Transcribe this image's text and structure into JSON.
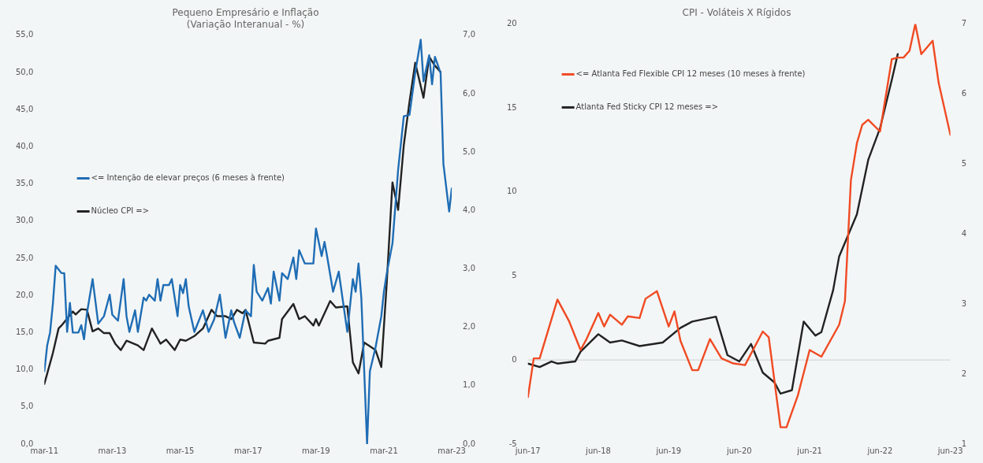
{
  "chart_data": [
    {
      "type": "line",
      "title": [
        "Pequeno Empresário e Inflação",
        "(Variação Interanual - %)"
      ],
      "legend": "left",
      "grid": false,
      "xlim": [
        "2011-03",
        "2023-03"
      ],
      "xticks": [
        {
          "value": "2011-03",
          "label": "mar-11"
        },
        {
          "value": "2013-03",
          "label": "mar-13"
        },
        {
          "value": "2015-03",
          "label": "mar-15"
        },
        {
          "value": "2017-03",
          "label": "mar-17"
        },
        {
          "value": "2019-03",
          "label": "mar-19"
        },
        {
          "value": "2021-03",
          "label": "mar-21"
        },
        {
          "value": "2023-03",
          "label": "mar-23"
        }
      ],
      "ylim": [
        0,
        55
      ],
      "yticks": [
        {
          "value": 0,
          "label": "0,0"
        },
        {
          "value": 5,
          "label": "5,0"
        },
        {
          "value": 10,
          "label": "10,0"
        },
        {
          "value": 15,
          "label": "15,0"
        },
        {
          "value": 20,
          "label": "20,0"
        },
        {
          "value": 25,
          "label": "25,0"
        },
        {
          "value": 30,
          "label": "30,0"
        },
        {
          "value": 35,
          "label": "35,0"
        },
        {
          "value": 40,
          "label": "40,0"
        },
        {
          "value": 45,
          "label": "45,0"
        },
        {
          "value": 50,
          "label": "50,0"
        },
        {
          "value": 55,
          "label": "55,0"
        }
      ],
      "y2lim": [
        0,
        7
      ],
      "y2ticks": [
        {
          "value": 0,
          "label": "0,0"
        },
        {
          "value": 1,
          "label": "1,0"
        },
        {
          "value": 2,
          "label": "2,0"
        },
        {
          "value": 3,
          "label": "3,0"
        },
        {
          "value": 4,
          "label": "4,0"
        },
        {
          "value": 5,
          "label": "5,0"
        },
        {
          "value": 6,
          "label": "6,0"
        },
        {
          "value": 7,
          "label": "7,0"
        }
      ],
      "series": [
        {
          "name": "<= Intenção de elevar preços (6 meses à frente)",
          "color": "#1f6db5",
          "x": [
            "2011-03",
            "2011-04",
            "2011-05",
            "2011-06",
            "2011-07",
            "2011-09",
            "2011-10",
            "2011-11",
            "2011-12",
            "2012-01",
            "2012-03",
            "2012-04",
            "2012-05",
            "2012-06",
            "2012-08",
            "2012-10",
            "2012-12",
            "2013-02",
            "2013-03",
            "2013-05",
            "2013-07",
            "2013-08",
            "2013-09",
            "2013-11",
            "2013-12",
            "2014-02",
            "2014-03",
            "2014-04",
            "2014-06",
            "2014-07",
            "2014-08",
            "2014-09",
            "2014-11",
            "2014-12",
            "2015-02",
            "2015-03",
            "2015-04",
            "2015-05",
            "2015-06",
            "2015-08",
            "2015-11",
            "2016-01",
            "2016-03",
            "2016-05",
            "2016-07",
            "2016-09",
            "2016-10",
            "2016-12",
            "2017-02",
            "2017-04",
            "2017-05",
            "2017-06",
            "2017-08",
            "2017-10",
            "2017-11",
            "2017-12",
            "2018-02",
            "2018-03",
            "2018-05",
            "2018-07",
            "2018-08",
            "2018-09",
            "2018-11",
            "2019-02",
            "2019-03",
            "2019-05",
            "2019-06",
            "2019-07",
            "2019-09",
            "2019-11",
            "2020-02",
            "2020-04",
            "2020-05",
            "2020-06",
            "2020-07",
            "2020-09",
            "2020-10",
            "2020-12",
            "2021-02",
            "2021-03",
            "2021-04",
            "2021-06",
            "2021-08",
            "2021-10",
            "2021-12",
            "2022-02",
            "2022-04",
            "2022-05",
            "2022-07",
            "2022-08",
            "2022-09",
            "2022-11",
            "2022-12",
            "2023-02",
            "2023-03"
          ],
          "values": [
            9.8,
            13.3,
            15,
            18.9,
            24,
            23,
            23,
            15.1,
            19,
            15,
            15,
            16,
            14.1,
            17.6,
            22.2,
            16.2,
            17.2,
            20.1,
            17.4,
            16.6,
            22.2,
            17.2,
            15.1,
            18,
            15.1,
            19.7,
            19.3,
            20.1,
            19.3,
            22.2,
            19.3,
            21.4,
            21.4,
            22.2,
            17.2,
            21.4,
            20.3,
            22.2,
            18.5,
            15.1,
            18,
            15.1,
            16.8,
            20.1,
            14.3,
            18,
            16.4,
            14.3,
            18,
            17.2,
            24.1,
            20.5,
            19.3,
            21,
            18.9,
            23.2,
            19.3,
            23,
            22.2,
            25.1,
            22.2,
            26.1,
            24.3,
            24.3,
            29,
            25.3,
            27.2,
            25.1,
            20.5,
            23.2,
            15.1,
            22.2,
            20.5,
            24.3,
            19.7,
            0,
            9.8,
            13,
            17.2,
            20.5,
            23,
            27,
            36.9,
            44.1,
            44.3,
            50,
            54.4,
            48.8,
            52.3,
            48.4,
            52.1,
            49.9,
            37.7,
            31.3,
            34.4
          ]
        },
        {
          "name": "Núcleo CPI =>",
          "color": "#222222",
          "axis": "y2",
          "x": [
            "2011-03",
            "2011-06",
            "2011-08",
            "2011-09",
            "2012-01",
            "2012-02",
            "2012-04",
            "2012-06",
            "2012-08",
            "2012-10",
            "2012-12",
            "2013-02",
            "2013-04",
            "2013-06",
            "2013-08",
            "2013-12",
            "2014-02",
            "2014-05",
            "2014-07",
            "2014-08",
            "2014-10",
            "2015-01",
            "2015-03",
            "2015-05",
            "2015-08",
            "2015-11",
            "2016-02",
            "2016-04",
            "2016-07",
            "2016-09",
            "2016-11",
            "2017-01",
            "2017-02",
            "2017-05",
            "2017-09",
            "2017-10",
            "2018-02",
            "2018-03",
            "2018-07",
            "2018-09",
            "2018-11",
            "2019-02",
            "2019-03",
            "2019-04",
            "2019-08",
            "2019-10",
            "2020-02",
            "2020-04",
            "2020-06",
            "2020-08",
            "2020-12",
            "2021-02",
            "2021-04",
            "2021-06",
            "2021-08",
            "2021-10",
            "2021-12",
            "2022-02",
            "2022-05",
            "2022-07",
            "2022-09",
            "2022-11"
          ],
          "values": [
            1.03,
            1.56,
            1.98,
            2.03,
            2.27,
            2.22,
            2.31,
            2.3,
            1.93,
            1.98,
            1.9,
            1.9,
            1.72,
            1.61,
            1.77,
            1.69,
            1.61,
            1.98,
            1.81,
            1.72,
            1.79,
            1.61,
            1.79,
            1.77,
            1.85,
            1.98,
            2.3,
            2.19,
            2.19,
            2.14,
            2.3,
            2.24,
            2.3,
            1.74,
            1.72,
            1.77,
            1.82,
            2.14,
            2.4,
            2.14,
            2.19,
            2.03,
            2.14,
            2.03,
            2.45,
            2.34,
            2.36,
            1.4,
            1.21,
            1.74,
            1.61,
            1.32,
            2.77,
            4.48,
            4.01,
            5.12,
            5.86,
            6.53,
            5.93,
            6.63,
            6.48,
            6.37
          ]
        }
      ]
    },
    {
      "type": "line",
      "title": [
        "CPI - Voláteis X Rígidos"
      ],
      "legend": "top left",
      "grid": false,
      "xlim": [
        "2017-06",
        "2023-06"
      ],
      "xticks": [
        {
          "value": "2017-06",
          "label": "jun-17"
        },
        {
          "value": "2018-06",
          "label": "jun-18"
        },
        {
          "value": "2019-06",
          "label": "jun-19"
        },
        {
          "value": "2020-06",
          "label": "jun-20"
        },
        {
          "value": "2021-06",
          "label": "jun-21"
        },
        {
          "value": "2022-06",
          "label": "jun-22"
        },
        {
          "value": "2023-06",
          "label": "jun-23"
        }
      ],
      "ylim": [
        -5,
        20
      ],
      "yticks": [
        -5,
        0,
        5,
        10,
        15,
        20
      ],
      "y2lim": [
        1,
        7
      ],
      "y2ticks": [
        1,
        2,
        3,
        4,
        5,
        6,
        7
      ],
      "ref_lines": [
        {
          "axis": "y",
          "value": 0,
          "color": "#d8dcdc"
        }
      ],
      "series": [
        {
          "name": "<= Atlanta Fed Flexible CPI 12 meses (10 meses à frente)",
          "color": "#f04a23",
          "x": [
            "2017-06",
            "2017-07",
            "2017-08",
            "2017-11",
            "2018-01",
            "2018-03",
            "2018-04",
            "2018-06",
            "2018-07",
            "2018-08",
            "2018-10",
            "2018-11",
            "2019-01",
            "2019-02",
            "2019-04",
            "2019-06",
            "2019-07",
            "2019-08",
            "2019-10",
            "2019-11",
            "2020-01",
            "2020-03",
            "2020-05",
            "2020-07",
            "2020-10",
            "2020-11",
            "2021-01",
            "2021-02",
            "2021-04",
            "2021-06",
            "2021-08",
            "2021-11",
            "2021-12",
            "2022-01",
            "2022-02",
            "2022-03",
            "2022-04",
            "2022-06",
            "2022-08",
            "2022-09",
            "2022-10",
            "2022-11",
            "2022-12",
            "2023-01",
            "2023-03",
            "2023-04",
            "2023-06"
          ],
          "values": [
            -2.2,
            0.1,
            0.1,
            3.6,
            2.3,
            0.6,
            1.25,
            2.8,
            2,
            2.7,
            2.1,
            2.6,
            2.5,
            3.65,
            4.1,
            2,
            2.9,
            1.15,
            -0.6,
            -0.6,
            1.25,
            0.1,
            -0.2,
            -0.3,
            1.7,
            1.35,
            -4,
            -4,
            -2.1,
            0.6,
            0.2,
            2.1,
            3.5,
            10.7,
            12.9,
            14,
            14.3,
            13.6,
            17.9,
            18,
            18,
            18.4,
            20,
            18.2,
            19,
            16.5,
            13.4
          ]
        },
        {
          "name": "Atlanta Fed Sticky CPI 12 meses =>",
          "color": "#222222",
          "axis": "y2",
          "x": [
            "2017-06",
            "2017-08",
            "2017-10",
            "2017-11",
            "2018-02",
            "2018-03",
            "2018-06",
            "2018-08",
            "2018-10",
            "2019-01",
            "2019-05",
            "2019-08",
            "2019-10",
            "2020-02",
            "2020-04",
            "2020-06",
            "2020-08",
            "2020-10",
            "2020-12",
            "2021-01",
            "2021-03",
            "2021-05",
            "2021-07",
            "2021-08",
            "2021-10",
            "2021-11",
            "2022-02",
            "2022-04",
            "2022-06",
            "2022-08",
            "2022-09"
          ],
          "values": [
            2.15,
            2.1,
            2.18,
            2.15,
            2.18,
            2.32,
            2.57,
            2.45,
            2.48,
            2.4,
            2.45,
            2.66,
            2.75,
            2.82,
            2.27,
            2.18,
            2.43,
            2.02,
            1.88,
            1.72,
            1.77,
            2.75,
            2.55,
            2.6,
            3.2,
            3.68,
            4.28,
            5.06,
            5.51,
            6.2,
            6.57
          ]
        }
      ]
    }
  ]
}
